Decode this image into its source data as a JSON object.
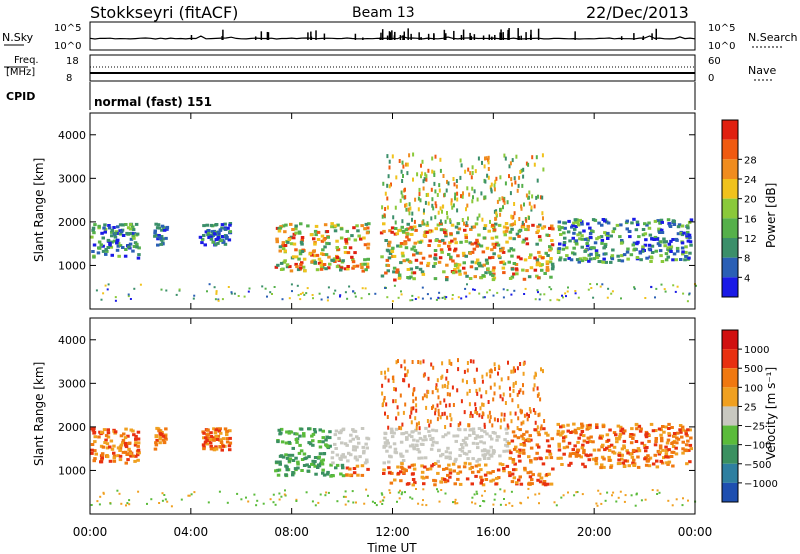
{
  "header": {
    "station": "Stokkseyri (fitACF)",
    "beam": "Beam 13",
    "date": "22/Dec/2013"
  },
  "noise_panel": {
    "left_label": "N.Sky",
    "right_label": "N.Search",
    "left_ticks": [
      "10^5",
      "10^0"
    ],
    "right_ticks": [
      "10^5",
      "10^0"
    ]
  },
  "freq_panel": {
    "left_label": "Freq.",
    "left_unit": "[MHz]",
    "left_ticks": [
      "18",
      "8"
    ],
    "right_label": "Nave",
    "right_ticks": [
      "60",
      "0"
    ]
  },
  "cpid_panel": {
    "label": "CPID",
    "text": "normal (fast) 151"
  },
  "chart_data": [
    {
      "type": "heatmap",
      "name": "power",
      "ylabel": "Slant Range [km]",
      "yticks": [
        "1000",
        "2000",
        "3000",
        "4000"
      ],
      "ylim": [
        0,
        4500
      ],
      "colorbar": {
        "title": "Power [dB]",
        "ticks": [
          "4",
          "8",
          "12",
          "16",
          "20",
          "24",
          "28"
        ],
        "colors": [
          "#1a1ae6",
          "#2a5fb5",
          "#3b8f6a",
          "#55b04a",
          "#8ac93a",
          "#f0c21c",
          "#f08c1e",
          "#f05a10",
          "#e02010"
        ]
      },
      "bands": [
        {
          "x": [
            0.0,
            1.9
          ],
          "y": [
            1200,
            2000
          ],
          "level": "medium"
        },
        {
          "x": [
            2.5,
            3.0
          ],
          "y": [
            1500,
            2000
          ],
          "level": "low"
        },
        {
          "x": [
            4.3,
            5.5
          ],
          "y": [
            1500,
            2000
          ],
          "level": "low"
        },
        {
          "x": [
            7.3,
            11.0
          ],
          "y": [
            900,
            2000
          ],
          "level": "high"
        },
        {
          "x": [
            11.5,
            18.3
          ],
          "y": [
            700,
            2000
          ],
          "level": "high"
        },
        {
          "x": [
            18.5,
            23.8
          ],
          "y": [
            1100,
            2100
          ],
          "level": "medium"
        }
      ]
    },
    {
      "type": "heatmap",
      "name": "velocity",
      "xlabel": "Time UT",
      "xticks": [
        "00:00",
        "04:00",
        "08:00",
        "12:00",
        "16:00",
        "20:00",
        "00:00"
      ],
      "ylabel": "Slant Range [km]",
      "yticks": [
        "1000",
        "2000",
        "3000",
        "4000"
      ],
      "ylim": [
        0,
        4500
      ],
      "colorbar": {
        "title": "Velocity [m s⁻¹]",
        "ticks": [
          "1000",
          "500",
          "100",
          "25",
          "−25",
          "−100",
          "−500",
          "−1000"
        ],
        "colors": [
          "#1e4fb0",
          "#2e7fa0",
          "#3a9060",
          "#5abb3a",
          "#c8c8c0",
          "#f0a020",
          "#f07810",
          "#e83010",
          "#d01010"
        ]
      }
    }
  ]
}
